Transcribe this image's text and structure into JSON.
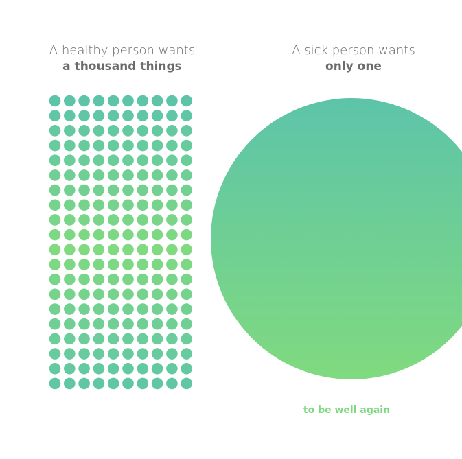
{
  "left": {
    "line1": "A healthy person wants",
    "line2": "a thousand things"
  },
  "right": {
    "line1": "A sick person wants",
    "line2": "only one"
  },
  "caption": "to be well again"
}
